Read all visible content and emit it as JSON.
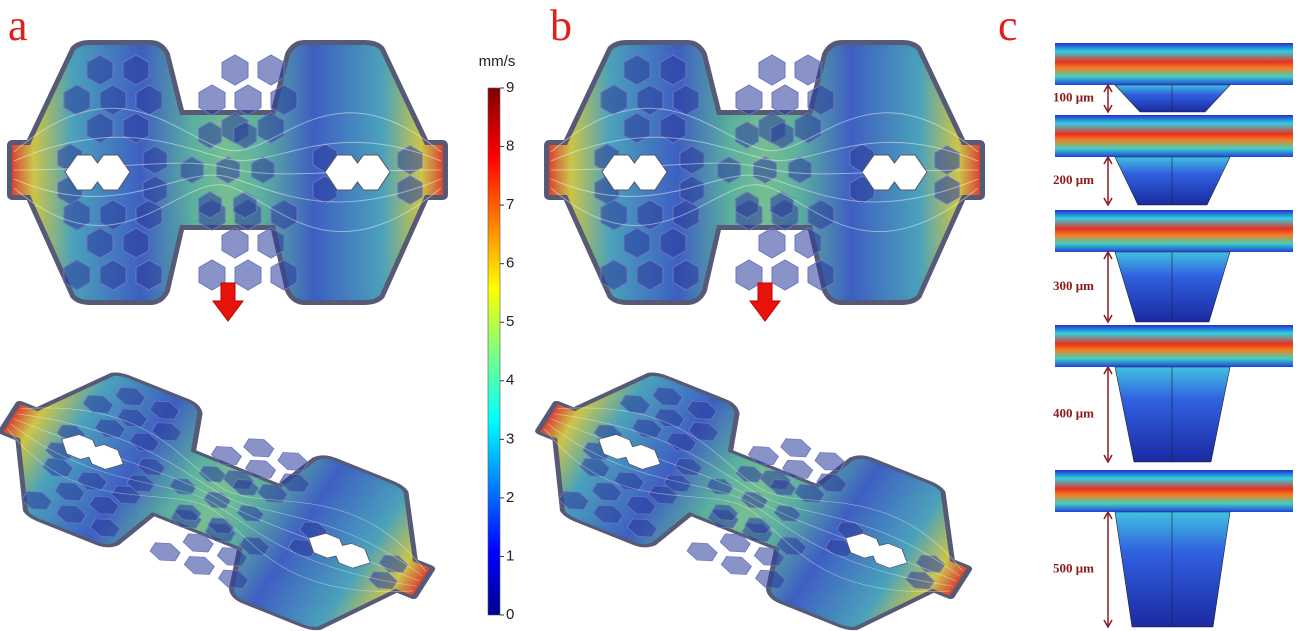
{
  "panels": [
    {
      "label": "a"
    },
    {
      "label": "b"
    },
    {
      "label": "c"
    }
  ],
  "colorbar": {
    "unit": "mm/s",
    "ticks": [
      0,
      1,
      2,
      3,
      4,
      5,
      6,
      7,
      8,
      9
    ]
  },
  "depths": [
    {
      "label": "100 μm"
    },
    {
      "label": "200 μm"
    },
    {
      "label": "300 μm"
    },
    {
      "label": "400 μm"
    },
    {
      "label": "500 μm"
    }
  ]
}
